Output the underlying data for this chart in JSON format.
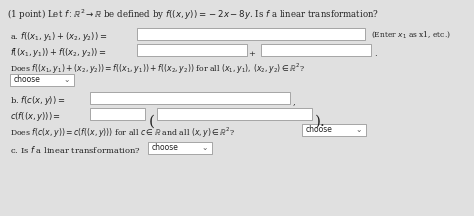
{
  "bg_color": "#e0e0e0",
  "text_color": "#222222",
  "title_line1": "(1 point) Let $f : \\mathbb{R}^2 \\rightarrow \\mathbb{R}$ be defined by $f((x, y)) = -2x - 8y$. Is $f$ a linear transformation?",
  "a_label": "a. $f((x_1, y_1) + (x_2, y_2)) =$",
  "a_hint": "(Enter $x_1$ as x1, etc.)",
  "a_line2": "$f((x_1, y_1)) + f((x_2, y_2)) =$",
  "a_plus": "+",
  "a_does": "Does $f((x_1, y_1) + (x_2, y_2)) = f((x_1, y_1)) + f((x_2, y_2))$ for all $(x_1, y_1),\\,(x_2, y_2) \\in \\mathbb{R}^2$?",
  "b_label": "b. $f(c(x, y)) =$",
  "b_line2": "$c(f((x, y))) =$",
  "b_does": "Does $f(c(x, y)) = c(f((x, y)))$ for all $c \\in \\mathbb{R}$ and all $(x, y) \\in \\mathbb{R}^2$?",
  "c_label": "c. Is $f$ a linear transformation?",
  "choose": "choose",
  "dot": ".",
  "comma": ",",
  "paren_l": "(",
  "paren_r": ").",
  "chevron": "⌄"
}
